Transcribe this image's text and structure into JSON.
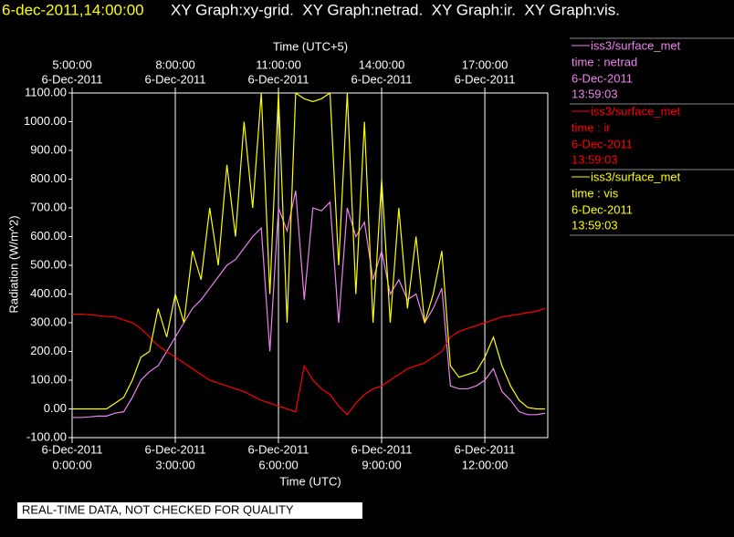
{
  "header": {
    "timestamp": "6-dec-2011,14:00:00",
    "graphs": "XY Graph:xy-grid.  XY Graph:netrad.  XY Graph:ir.  XY Graph:vis."
  },
  "note": "REAL-TIME DATA, NOT CHECKED FOR QUALITY",
  "chart_data": {
    "type": "line",
    "xlabel": "Time (UTC)",
    "x2label": "Time (UTC+5)",
    "ylabel": "Radiation (W/m^2)",
    "x": [
      0,
      0.25,
      0.5,
      0.75,
      1,
      1.25,
      1.5,
      1.75,
      2,
      2.25,
      2.5,
      2.75,
      3,
      3.25,
      3.5,
      3.75,
      4,
      4.25,
      4.5,
      4.75,
      5,
      5.25,
      5.5,
      5.75,
      6,
      6.25,
      6.5,
      6.75,
      7,
      7.25,
      7.5,
      7.75,
      8,
      8.25,
      8.5,
      8.75,
      9,
      9.25,
      9.5,
      9.75,
      10,
      10.25,
      10.5,
      10.75,
      11,
      11.25,
      11.5,
      11.75,
      12,
      12.25,
      12.5,
      12.75,
      13,
      13.25,
      13.5,
      13.75
    ],
    "xlim": [
      0,
      13.83
    ],
    "xticks": [
      {
        "value": 0,
        "date": "6-Dec-2011",
        "label": "0:00:00"
      },
      {
        "value": 3,
        "date": "6-Dec-2011",
        "label": "3:00:00"
      },
      {
        "value": 6,
        "date": "6-Dec-2011",
        "label": "6:00:00"
      },
      {
        "value": 9,
        "date": "6-Dec-2011",
        "label": "9:00:00"
      },
      {
        "value": 12,
        "date": "6-Dec-2011",
        "label": "12:00:00"
      }
    ],
    "x2ticks": [
      {
        "value": 0,
        "date": "6-Dec-2011",
        "label": "5:00:00"
      },
      {
        "value": 3,
        "date": "6-Dec-2011",
        "label": "8:00:00"
      },
      {
        "value": 6,
        "date": "6-Dec-2011",
        "label": "11:00:00"
      },
      {
        "value": 9,
        "date": "6-Dec-2011",
        "label": "14:00:00"
      },
      {
        "value": 12,
        "date": "6-Dec-2011",
        "label": "17:00:00"
      }
    ],
    "ylim": [
      -100,
      1100
    ],
    "yticks": [
      {
        "value": -100,
        "label": "-100.00"
      },
      {
        "value": 0,
        "label": "0.00"
      },
      {
        "value": 100,
        "label": "100.00"
      },
      {
        "value": 200,
        "label": "200.00"
      },
      {
        "value": 300,
        "label": "300.00"
      },
      {
        "value": 400,
        "label": "400.00"
      },
      {
        "value": 500,
        "label": "500.00"
      },
      {
        "value": 600,
        "label": "600.00"
      },
      {
        "value": 700,
        "label": "700.00"
      },
      {
        "value": 800,
        "label": "800.00"
      },
      {
        "value": 900,
        "label": "900.00"
      },
      {
        "value": 1000,
        "label": "1000.00"
      },
      {
        "value": 1100,
        "label": "1100.00"
      }
    ],
    "grid": "x",
    "series": [
      {
        "name": "time : netrad",
        "source": "iss3/surface_met",
        "date": "6-Dec-2011",
        "time": "13:59:03",
        "color": "#ee82ee",
        "values": [
          -30,
          -30,
          -28,
          -25,
          -25,
          -15,
          -10,
          40,
          100,
          130,
          150,
          200,
          250,
          300,
          350,
          380,
          420,
          460,
          500,
          520,
          560,
          600,
          630,
          200,
          700,
          620,
          760,
          380,
          700,
          690,
          720,
          300,
          700,
          600,
          650,
          450,
          550,
          400,
          450,
          380,
          400,
          300,
          350,
          420,
          80,
          70,
          70,
          80,
          100,
          140,
          60,
          30,
          -10,
          -20,
          -20,
          -15
        ]
      },
      {
        "name": "time : ir",
        "source": "iss3/surface_met",
        "date": "6-Dec-2011",
        "time": "13:59:03",
        "color": "#ff0000",
        "values": [
          330,
          330,
          328,
          325,
          322,
          320,
          310,
          300,
          280,
          250,
          220,
          200,
          180,
          160,
          140,
          120,
          100,
          90,
          80,
          70,
          60,
          45,
          30,
          20,
          10,
          0,
          -10,
          150,
          100,
          70,
          50,
          10,
          -20,
          20,
          50,
          70,
          80,
          100,
          120,
          140,
          150,
          160,
          180,
          200,
          250,
          270,
          280,
          290,
          300,
          310,
          320,
          325,
          330,
          335,
          340,
          350
        ]
      },
      {
        "name": "time : vis",
        "source": "iss3/surface_met",
        "date": "6-Dec-2011",
        "time": "13:59:03",
        "color": "#ffff00",
        "values": [
          0,
          0,
          0,
          0,
          0,
          20,
          40,
          100,
          180,
          200,
          350,
          250,
          400,
          300,
          550,
          450,
          700,
          500,
          850,
          600,
          1000,
          700,
          1100,
          400,
          1100,
          300,
          1100,
          1080,
          1070,
          1080,
          1100,
          500,
          1100,
          400,
          1000,
          300,
          800,
          300,
          700,
          350,
          600,
          300,
          400,
          550,
          150,
          110,
          120,
          130,
          180,
          250,
          150,
          80,
          30,
          5,
          0,
          0
        ]
      }
    ]
  }
}
